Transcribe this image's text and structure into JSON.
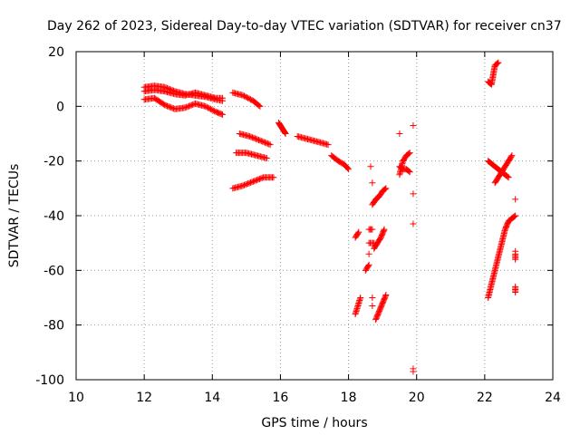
{
  "chart_data": {
    "type": "scatter",
    "title": "Day 262 of 2023, Sidereal Day-to-day VTEC variation (SDTVAR) for receiver cn37",
    "xlabel": "GPS time / hours",
    "ylabel": "SDTVAR / TECUs",
    "xlim": [
      10,
      24
    ],
    "ylim": [
      -100,
      20
    ],
    "x_ticks": [
      10,
      12,
      14,
      16,
      18,
      20,
      22,
      24
    ],
    "y_ticks": [
      -100,
      -80,
      -60,
      -40,
      -20,
      0,
      20
    ],
    "x_tick_labels": [
      "10",
      "12",
      "14",
      "16",
      "18",
      "20",
      "22",
      "24"
    ],
    "y_tick_labels": [
      "-100",
      "-80",
      "-60",
      "-40",
      "-20",
      "0",
      "20"
    ],
    "grid": true,
    "marker": "+",
    "color": "#ff0000",
    "segments": [
      {
        "x": [
          12.0,
          12.3,
          12.6,
          12.9,
          13.2,
          13.5,
          13.8,
          14.1,
          14.3
        ],
        "y": [
          7,
          7.5,
          7,
          5.5,
          4.5,
          4,
          3.5,
          2.5,
          2
        ]
      },
      {
        "x": [
          12.0,
          12.3,
          12.6,
          12.9,
          13.2,
          13.5,
          13.8,
          14.1,
          14.3
        ],
        "y": [
          5.5,
          6,
          5.5,
          4.5,
          4,
          5,
          4,
          3,
          3
        ]
      },
      {
        "x": [
          12.0,
          12.3,
          12.6,
          12.9,
          13.2,
          13.5,
          13.8,
          14.1,
          14.3
        ],
        "y": [
          2.5,
          3,
          0.5,
          -1,
          -0.5,
          1,
          0,
          -2,
          -3
        ]
      },
      {
        "x": [
          14.6,
          14.9,
          15.2,
          15.4
        ],
        "y": [
          5,
          4,
          2,
          0
        ]
      },
      {
        "x": [
          14.8,
          15.1,
          15.4,
          15.7
        ],
        "y": [
          -10,
          -11,
          -12.5,
          -14
        ]
      },
      {
        "x": [
          14.7,
          15.0,
          15.3,
          15.6
        ],
        "y": [
          -17,
          -17,
          -18,
          -19
        ]
      },
      {
        "x": [
          14.6,
          14.9,
          15.2,
          15.5,
          15.8
        ],
        "y": [
          -30,
          -29,
          -27.5,
          -26,
          -26
        ]
      },
      {
        "x": [
          15.95,
          16.0,
          16.05,
          16.1,
          16.15
        ],
        "y": [
          -6,
          -7,
          -8,
          -9,
          -10
        ]
      },
      {
        "x": [
          16.5,
          16.8,
          17.1,
          17.4
        ],
        "y": [
          -11,
          -12,
          -13,
          -14
        ]
      },
      {
        "x": [
          17.5,
          17.7,
          17.9,
          18.0
        ],
        "y": [
          -18,
          -20,
          -21.5,
          -23
        ]
      },
      {
        "x": [
          18.2,
          18.3
        ],
        "y": [
          -48,
          -46
        ]
      },
      {
        "x": [
          18.5,
          18.6
        ],
        "y": [
          -60,
          -58
        ]
      },
      {
        "x": [
          18.6,
          18.75
        ],
        "y": [
          -50,
          -50
        ]
      },
      {
        "x": [
          18.75,
          18.85,
          18.95,
          19.05
        ],
        "y": [
          -52,
          -50,
          -48,
          -45
        ]
      },
      {
        "x": [
          18.7,
          18.8,
          18.9,
          19.0,
          19.1
        ],
        "y": [
          -36,
          -34,
          -33,
          -31,
          -30
        ]
      },
      {
        "x": [
          18.6,
          18.7
        ],
        "y": [
          -45,
          -45
        ]
      },
      {
        "x": [
          18.2,
          18.25,
          18.3,
          18.35
        ],
        "y": [
          -76,
          -74,
          -72,
          -70
        ]
      },
      {
        "x": [
          18.8,
          18.9,
          19.0,
          19.1
        ],
        "y": [
          -78,
          -75,
          -72,
          -69
        ]
      },
      {
        "x": [
          19.5,
          19.6,
          19.7,
          19.8
        ],
        "y": [
          -25,
          -20,
          -18,
          -17
        ]
      },
      {
        "x": [
          19.5,
          19.6,
          19.7,
          19.8
        ],
        "y": [
          -22,
          -23,
          -23,
          -24
        ]
      },
      {
        "x": [
          22.1,
          22.2,
          22.3,
          22.4,
          22.5,
          22.6,
          22.7,
          22.8,
          22.9
        ],
        "y": [
          -70,
          -65,
          -60,
          -55,
          -50,
          -45,
          -42,
          -41,
          -40
        ]
      },
      {
        "x": [
          22.3,
          22.4,
          22.5,
          22.6,
          22.7,
          22.8
        ],
        "y": [
          -28,
          -26,
          -24,
          -22,
          -20,
          -18
        ]
      },
      {
        "x": [
          22.1,
          22.2,
          22.3,
          22.4,
          22.5,
          22.6,
          22.7
        ],
        "y": [
          -20,
          -21,
          -22,
          -23,
          -24,
          -25,
          -26
        ]
      },
      {
        "x": [
          22.1,
          22.2,
          22.3,
          22.4
        ],
        "y": [
          9,
          8,
          15,
          16
        ]
      },
      {
        "x": [
          22.9,
          22.9
        ],
        "y": [
          -54,
          -56
        ]
      },
      {
        "x": [
          22.9,
          22.9
        ],
        "y": [
          -66,
          -68
        ]
      }
    ],
    "isolated_points": [
      {
        "x": 18.65,
        "y": -22
      },
      {
        "x": 18.7,
        "y": -28
      },
      {
        "x": 18.6,
        "y": -54
      },
      {
        "x": 18.7,
        "y": -70
      },
      {
        "x": 18.7,
        "y": -73
      },
      {
        "x": 19.5,
        "y": -10
      },
      {
        "x": 19.9,
        "y": -7
      },
      {
        "x": 19.9,
        "y": -32
      },
      {
        "x": 19.9,
        "y": -43
      },
      {
        "x": 19.9,
        "y": -96
      },
      {
        "x": 19.9,
        "y": -97
      },
      {
        "x": 22.9,
        "y": -34
      },
      {
        "x": 22.9,
        "y": -53
      }
    ]
  }
}
